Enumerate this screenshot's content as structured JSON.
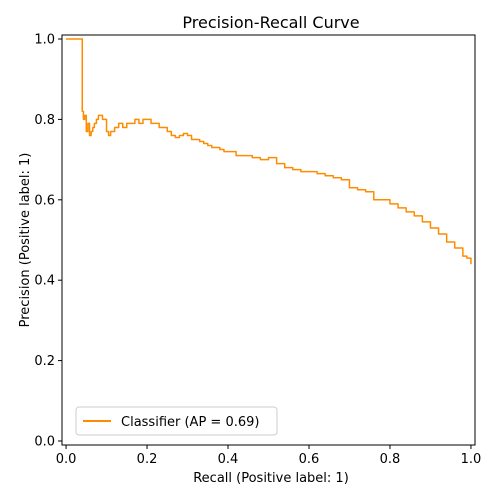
{
  "chart_data": {
    "type": "line",
    "title": "Precision-Recall Curve",
    "xlabel": "Recall (Positive label: 1)",
    "ylabel": "Precision (Positive label: 1)",
    "xlim": [
      -0.01,
      1.01
    ],
    "ylim": [
      -0.01,
      1.01
    ],
    "xticks": [
      0.0,
      0.2,
      0.4,
      0.6,
      0.8,
      1.0
    ],
    "yticks": [
      0.0,
      0.2,
      0.4,
      0.6,
      0.8,
      1.0
    ],
    "xtick_labels": [
      "0.0",
      "0.2",
      "0.4",
      "0.6",
      "0.8",
      "1.0"
    ],
    "ytick_labels": [
      "0.0",
      "0.2",
      "0.4",
      "0.6",
      "0.8",
      "1.0"
    ],
    "grid": false,
    "legend_position": "lower-left",
    "color": "#ff8c00",
    "series": [
      {
        "name": "Classifier (AP = 0.69)",
        "step": true,
        "x": [
          0.0,
          0.04,
          0.04,
          0.04,
          0.043,
          0.046,
          0.05,
          0.054,
          0.058,
          0.062,
          0.066,
          0.07,
          0.075,
          0.08,
          0.09,
          0.1,
          0.105,
          0.11,
          0.12,
          0.13,
          0.14,
          0.15,
          0.16,
          0.17,
          0.18,
          0.19,
          0.2,
          0.21,
          0.22,
          0.23,
          0.24,
          0.25,
          0.26,
          0.27,
          0.28,
          0.29,
          0.3,
          0.31,
          0.32,
          0.33,
          0.34,
          0.35,
          0.36,
          0.37,
          0.38,
          0.39,
          0.4,
          0.42,
          0.44,
          0.46,
          0.48,
          0.5,
          0.52,
          0.54,
          0.56,
          0.58,
          0.6,
          0.62,
          0.64,
          0.66,
          0.68,
          0.7,
          0.72,
          0.74,
          0.76,
          0.78,
          0.8,
          0.82,
          0.84,
          0.86,
          0.88,
          0.9,
          0.92,
          0.94,
          0.96,
          0.98,
          0.99,
          1.0
        ],
        "y": [
          1.0,
          1.0,
          0.94,
          0.82,
          0.8,
          0.81,
          0.77,
          0.79,
          0.76,
          0.77,
          0.78,
          0.79,
          0.8,
          0.81,
          0.8,
          0.77,
          0.76,
          0.77,
          0.78,
          0.79,
          0.78,
          0.79,
          0.79,
          0.8,
          0.79,
          0.8,
          0.8,
          0.79,
          0.79,
          0.78,
          0.78,
          0.77,
          0.76,
          0.755,
          0.76,
          0.765,
          0.76,
          0.75,
          0.75,
          0.745,
          0.74,
          0.735,
          0.73,
          0.73,
          0.725,
          0.72,
          0.72,
          0.71,
          0.71,
          0.705,
          0.7,
          0.705,
          0.69,
          0.68,
          0.675,
          0.67,
          0.67,
          0.665,
          0.66,
          0.655,
          0.65,
          0.63,
          0.625,
          0.62,
          0.6,
          0.6,
          0.59,
          0.58,
          0.57,
          0.56,
          0.545,
          0.53,
          0.515,
          0.495,
          0.48,
          0.46,
          0.455,
          0.44
        ]
      }
    ]
  }
}
